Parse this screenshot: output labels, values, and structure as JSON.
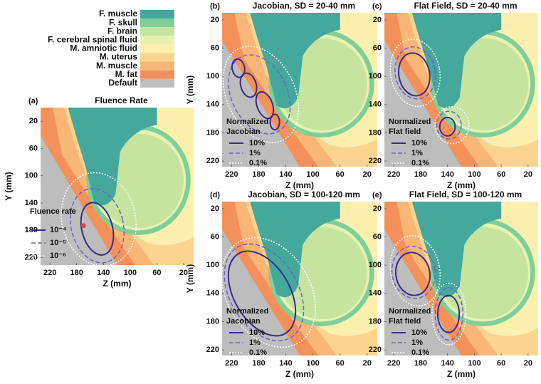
{
  "legend": [
    {
      "name": "F. muscle",
      "color": "#45a89c"
    },
    {
      "name": "F. skull",
      "color": "#7fcf98"
    },
    {
      "name": "F. brain",
      "color": "#c6e4a0"
    },
    {
      "name": "F. cerebral spinal fluid",
      "color": "#e6f2b2"
    },
    {
      "name": "M. amniotic fluid",
      "color": "#fdf0ae"
    },
    {
      "name": "M. uterus",
      "color": "#fbd590"
    },
    {
      "name": "M. muscle",
      "color": "#f9b677"
    },
    {
      "name": "M. fat",
      "color": "#f4915a"
    },
    {
      "name": "Default",
      "color": "#bdbdbd"
    }
  ],
  "chart_data": [
    {
      "type": "map",
      "panel": "(a)",
      "title": "Fluence Rate",
      "x_label": "Z (mm)",
      "y_label": "Y (mm)",
      "xlim": [
        234,
        5
      ],
      "ylim": [
        0,
        231
      ],
      "xticks": [
        220,
        180,
        140,
        100,
        60,
        20
      ],
      "yticks": [
        20,
        60,
        100,
        140,
        180,
        220
      ],
      "contour_legend": {
        "title": [
          "Fluence rate"
        ],
        "entries": [
          {
            "name": "10⁻⁴",
            "color": "#3b2a85",
            "style": "solid"
          },
          {
            "name": "10⁻⁵",
            "color": "#6c63c4",
            "style": "dashed"
          },
          {
            "name": "10⁻⁶",
            "color": "#ffffff",
            "style": "dotted"
          }
        ]
      }
    },
    {
      "type": "map",
      "panel": "(b)",
      "title": "Jacobian, SD = 20-40 mm",
      "x_label": "Z (mm)",
      "y_label": "Y (mm)",
      "xlim": [
        234,
        5
      ],
      "ylim": [
        10,
        228
      ],
      "xticks": [
        220,
        180,
        140,
        100,
        60,
        20
      ],
      "yticks": [
        20,
        60,
        100,
        140,
        180,
        220
      ],
      "contour_legend": {
        "title": [
          "Normalized",
          "Jacobian"
        ],
        "entries": [
          {
            "name": "10%",
            "color": "#3b2a85",
            "style": "solid"
          },
          {
            "name": "1%",
            "color": "#6c63c4",
            "style": "dashed"
          },
          {
            "name": "0.1%",
            "color": "#ffffff",
            "style": "dotted"
          }
        ]
      }
    },
    {
      "type": "map",
      "panel": "(c)",
      "title": "Flat Field, SD = 20-40 mm",
      "x_label": "Z (mm)",
      "xlim": [
        234,
        5
      ],
      "ylim": [
        10,
        228
      ],
      "xticks": [
        220,
        180,
        140,
        100,
        60,
        20
      ],
      "yticks": [
        20,
        60,
        100,
        140,
        180,
        220
      ],
      "contour_legend": {
        "title": [
          "Normalized",
          "Flat field"
        ],
        "entries": [
          {
            "name": "10%",
            "color": "#3b2a85",
            "style": "solid"
          },
          {
            "name": "1%",
            "color": "#6c63c4",
            "style": "dashed"
          },
          {
            "name": "0.1%",
            "color": "#ffffff",
            "style": "dotted"
          }
        ]
      }
    },
    {
      "type": "map",
      "panel": "(d)",
      "title": "Jacobian, SD = 100-120 mm",
      "x_label": "Z (mm)",
      "y_label": "Y (mm)",
      "xlim": [
        234,
        5
      ],
      "ylim": [
        10,
        228
      ],
      "xticks": [
        220,
        180,
        140,
        100,
        60,
        20
      ],
      "yticks": [
        20,
        60,
        100,
        140,
        180,
        220
      ],
      "contour_legend": {
        "title": [
          "Normalized",
          "Jacobian"
        ],
        "entries": [
          {
            "name": "10%",
            "color": "#3b2a85",
            "style": "solid"
          },
          {
            "name": "1%",
            "color": "#6c63c4",
            "style": "dashed"
          },
          {
            "name": "0.1%",
            "color": "#ffffff",
            "style": "dotted"
          }
        ]
      }
    },
    {
      "type": "map",
      "panel": "(e)",
      "title": "Flat Field, SD = 100-120 mm",
      "x_label": "Z (mm)",
      "xlim": [
        234,
        5
      ],
      "ylim": [
        10,
        228
      ],
      "xticks": [
        220,
        180,
        140,
        100,
        60,
        20
      ],
      "yticks": [
        20,
        60,
        100,
        140,
        180,
        220
      ],
      "contour_legend": {
        "title": [
          "Normalized",
          "Flat field"
        ],
        "entries": [
          {
            "name": "10%",
            "color": "#3b2a85",
            "style": "solid"
          },
          {
            "name": "1%",
            "color": "#6c63c4",
            "style": "dashed"
          },
          {
            "name": "0.1%",
            "color": "#ffffff",
            "style": "dotted"
          }
        ]
      }
    }
  ]
}
